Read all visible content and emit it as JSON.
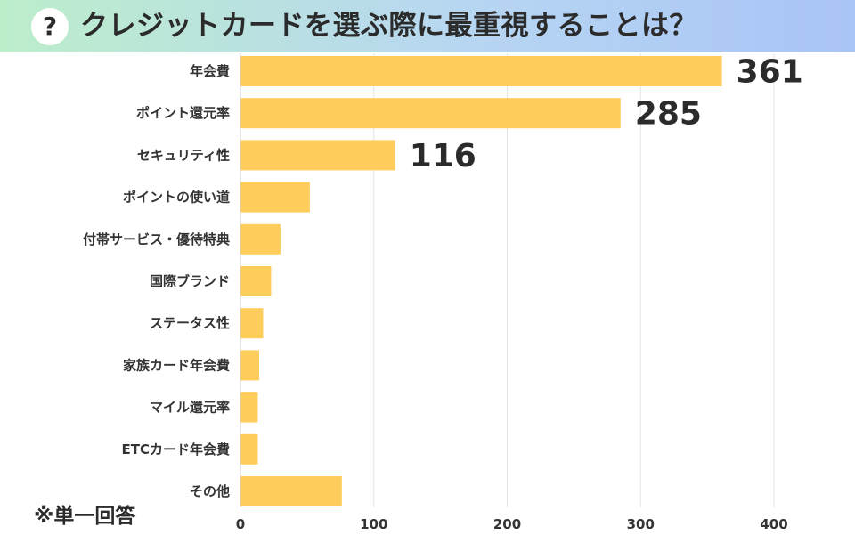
{
  "header": {
    "title": "クレジットカードを選ぶ際に最重視することは？",
    "question_mark": "?"
  },
  "footnote": "※単一回答",
  "colors": {
    "bar": "#ffcd5c",
    "grid": "#e3e3e3",
    "text": "#333333"
  },
  "chart_data": {
    "type": "bar",
    "orientation": "horizontal",
    "title": "クレジットカードを選ぶ際に最重視することは？",
    "xlabel": "",
    "ylabel": "",
    "categories": [
      "年会費",
      "ポイント還元率",
      "セキュリティ性",
      "ポイントの使い道",
      "付帯サービス・優待特典",
      "国際ブランド",
      "ステータス性",
      "家族カード年会費",
      "マイル還元率",
      "ETCカード年会費",
      "その他"
    ],
    "values": [
      361,
      285,
      116,
      52,
      30,
      23,
      17,
      14,
      13,
      13,
      76
    ],
    "data_labels": [
      "361",
      "285",
      "116",
      null,
      null,
      null,
      null,
      null,
      null,
      null,
      null
    ],
    "xlim": [
      0,
      400
    ],
    "xticks": [
      0,
      100,
      200,
      300,
      400
    ],
    "grid": true,
    "legend": "none"
  }
}
